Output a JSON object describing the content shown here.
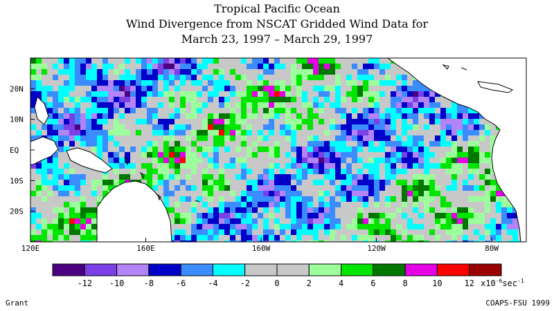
{
  "title": {
    "line1": "Tropical Pacific Ocean",
    "line2": "Wind Divergence from NSCAT Gridded Wind Data for",
    "line3": "March 23, 1997 – March 29, 1997"
  },
  "map": {
    "lat_labels": [
      "20N",
      "10N",
      "EQ",
      "10S",
      "20S"
    ],
    "lat_values": [
      20,
      10,
      0,
      -10,
      -20
    ],
    "lon_labels": [
      "120E",
      "160E",
      "160W",
      "120W",
      "80W"
    ],
    "lon_values": [
      120,
      160,
      200,
      240,
      280
    ],
    "lon_range": [
      120,
      292
    ],
    "lat_range": [
      -30,
      30
    ],
    "land_color": "#ffffff",
    "coastline_color": "#000000"
  },
  "colorbar": {
    "colors": [
      "#4b0082",
      "#7b3fe6",
      "#b384f5",
      "#0000c8",
      "#3a8cff",
      "#00ffff",
      "#c8c8c8",
      "#c8c8c8",
      "#9cff9c",
      "#00e600",
      "#007800",
      "#e600e6",
      "#ff0000",
      "#9b0000"
    ],
    "tick_labels": [
      "-12",
      "-10",
      "-8",
      "-6",
      "-4",
      "-2",
      "0",
      "2",
      "4",
      "6",
      "8",
      "10",
      "12"
    ],
    "units_label": "x10",
    "units_exp": "-6",
    "units_tail": "sec",
    "units_tail_exp": "-1"
  },
  "footer": {
    "left": "Grant",
    "right": "COAPS-FSU 1999"
  }
}
